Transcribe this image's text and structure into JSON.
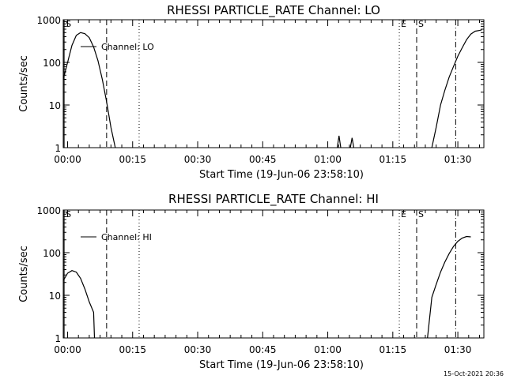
{
  "chart_data": [
    {
      "type": "line",
      "title": "RHESSI PARTICLE_RATE Channel: LO",
      "xlabel": "Start Time (19-Jun-06 23:58:10)",
      "ylabel": "Counts/sec",
      "y_scale": "log",
      "ylim": [
        1,
        1000
      ],
      "xlim_minutes": [
        -1,
        96
      ],
      "y_ticks": [
        1,
        10,
        100,
        1000
      ],
      "y_tick_labels": [
        "1",
        "10",
        "100",
        "1000"
      ],
      "x_ticks_minutes": [
        0,
        15,
        30,
        45,
        60,
        75,
        90
      ],
      "x_tick_labels": [
        "00:00",
        "00:15",
        "00:30",
        "00:45",
        "01:00",
        "01:15",
        "01:30"
      ],
      "grid": false,
      "legend": {
        "position": "top-left",
        "entries": [
          "Channel: LO"
        ]
      },
      "markers": [
        {
          "label": "S",
          "minute": -0.8,
          "style": "solid"
        },
        {
          "label": "",
          "minute": 9,
          "style": "dashed"
        },
        {
          "label": "",
          "minute": 16.5,
          "style": "dotted"
        },
        {
          "label": "E",
          "minute": 76.5,
          "style": "dotted"
        },
        {
          "label": "S",
          "minute": 80.5,
          "style": "dashed"
        },
        {
          "label": "",
          "minute": 89.5,
          "style": "dashdot"
        }
      ],
      "series": [
        {
          "name": "Channel: LO",
          "segments": [
            [
              [
                -1,
                40
              ],
              [
                0,
                100
              ],
              [
                1,
                250
              ],
              [
                2,
                430
              ],
              [
                3,
                500
              ],
              [
                4,
                470
              ],
              [
                5,
                380
              ],
              [
                6,
                230
              ],
              [
                7,
                110
              ],
              [
                8,
                40
              ],
              [
                9,
                12
              ],
              [
                10,
                3
              ],
              [
                11,
                1
              ]
            ],
            [
              [
                62.2,
                1
              ],
              [
                62.6,
                1.9
              ],
              [
                63,
                1
              ]
            ],
            [
              [
                65.2,
                1
              ],
              [
                65.6,
                1.7
              ],
              [
                66,
                1
              ]
            ],
            [
              [
                84,
                1
              ],
              [
                85,
                3
              ],
              [
                86,
                10
              ],
              [
                87,
                22
              ],
              [
                88,
                45
              ],
              [
                89,
                80
              ],
              [
                90,
                140
              ],
              [
                91,
                220
              ],
              [
                92,
                340
              ],
              [
                93,
                460
              ],
              [
                94,
                540
              ],
              [
                95,
                560
              ],
              [
                95.5,
                580
              ]
            ]
          ]
        }
      ]
    },
    {
      "type": "line",
      "title": "RHESSI PARTICLE_RATE Channel: HI",
      "xlabel": "Start Time (19-Jun-06 23:58:10)",
      "ylabel": "Counts/sec",
      "y_scale": "log",
      "ylim": [
        1,
        1000
      ],
      "xlim_minutes": [
        -1,
        96
      ],
      "y_ticks": [
        1,
        10,
        100,
        1000
      ],
      "y_tick_labels": [
        "1",
        "10",
        "100",
        "1000"
      ],
      "x_ticks_minutes": [
        0,
        15,
        30,
        45,
        60,
        75,
        90
      ],
      "x_tick_labels": [
        "00:00",
        "00:15",
        "00:30",
        "00:45",
        "01:00",
        "01:15",
        "01:30"
      ],
      "grid": false,
      "legend": {
        "position": "top-left",
        "entries": [
          "Channel: HI"
        ]
      },
      "markers": [
        {
          "label": "S",
          "minute": -0.8,
          "style": "solid"
        },
        {
          "label": "",
          "minute": 9,
          "style": "dashed"
        },
        {
          "label": "",
          "minute": 16.5,
          "style": "dotted"
        },
        {
          "label": "E",
          "minute": 76.5,
          "style": "dotted"
        },
        {
          "label": "S",
          "minute": 80.5,
          "style": "dashed"
        },
        {
          "label": "",
          "minute": 89.5,
          "style": "dashdot"
        }
      ],
      "series": [
        {
          "name": "Channel: HI",
          "segments": [
            [
              [
                -1,
                22
              ],
              [
                0,
                33
              ],
              [
                1,
                38
              ],
              [
                2,
                35
              ],
              [
                3,
                25
              ],
              [
                4,
                14
              ],
              [
                5,
                7
              ],
              [
                6,
                4
              ],
              [
                6.2,
                1
              ]
            ],
            [
              [
                83,
                1
              ],
              [
                84,
                9
              ],
              [
                85,
                18
              ],
              [
                86,
                35
              ],
              [
                87,
                60
              ],
              [
                88,
                95
              ],
              [
                89,
                140
              ],
              [
                90,
                185
              ],
              [
                91,
                220
              ],
              [
                92,
                240
              ],
              [
                93,
                235
              ]
            ]
          ]
        }
      ]
    }
  ],
  "footer": {
    "timestamp": "15-Oct-2021 20:36"
  }
}
